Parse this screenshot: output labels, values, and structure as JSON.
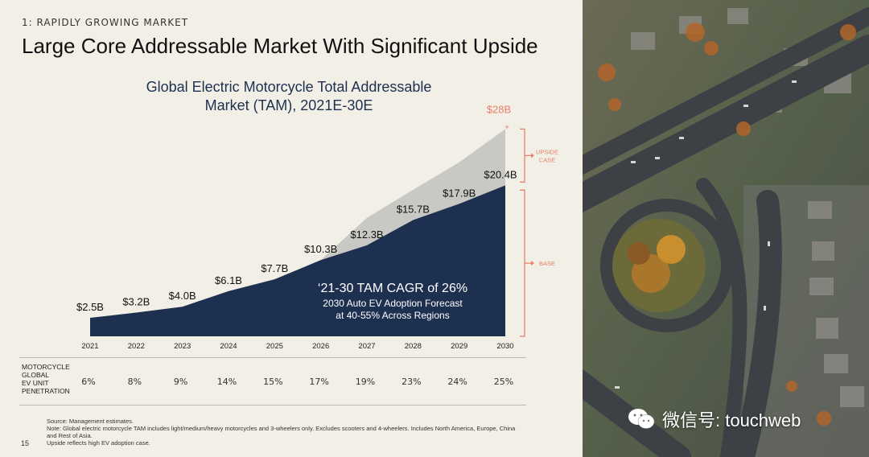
{
  "slide": {
    "section_label": "1: RAPIDLY GROWING MARKET",
    "title": "Large Core Addressable Market With Significant Upside",
    "page_number": "15"
  },
  "chart_data": {
    "type": "area",
    "title": "Global Electric Motorcycle Total Addressable Market (TAM), 2021E-30E",
    "title_lines": [
      "Global Electric Motorcycle Total Addressable",
      "Market (TAM), 2021E-30E"
    ],
    "categories": [
      "2021",
      "2022",
      "2023",
      "2024",
      "2025",
      "2026",
      "2027",
      "2028",
      "2029",
      "2030"
    ],
    "series": [
      {
        "name": "Base",
        "color": "#1e3050",
        "values": [
          2.5,
          3.2,
          4.0,
          6.1,
          7.7,
          10.3,
          12.3,
          15.7,
          17.9,
          20.4
        ],
        "labels": [
          "$2.5B",
          "$3.2B",
          "$4.0B",
          "$6.1B",
          "$7.7B",
          "$10.3B",
          "$12.3B",
          "$15.7B",
          "$17.9B",
          "$20.4B"
        ]
      },
      {
        "name": "Upside",
        "color": "#c8c8c4",
        "values": [
          2.5,
          3.2,
          4.0,
          6.1,
          7.7,
          10.3,
          16.0,
          19.8,
          23.5,
          28.0
        ],
        "top_label": "$28B"
      }
    ],
    "ylim": [
      0,
      30
    ],
    "brackets": [
      {
        "label_lines": [
          "UPSIDE",
          "CASE"
        ],
        "from": 20.4,
        "to": 28.0
      },
      {
        "label_lines": [
          "BASE"
        ],
        "from": 0,
        "to": 20.4
      }
    ],
    "annotation": {
      "headline": "‘21-30 TAM CAGR of 26%",
      "line1": "2030 Auto EV Adoption Forecast",
      "line2": "at 40-55% Across Regions"
    },
    "accent_color": "#e8806a"
  },
  "penetration": {
    "label_lines": [
      "MOTORCYCLE",
      "GLOBAL",
      "EV UNIT",
      "PENETRATION"
    ],
    "values": [
      "6%",
      "8%",
      "9%",
      "14%",
      "15%",
      "17%",
      "19%",
      "23%",
      "24%",
      "25%"
    ]
  },
  "footnotes": [
    "Source: Management estimates.",
    "Note: Global electric motorcycle TAM includes light/medium/heavy motorcycles and 3-wheelers only. Excludes scooters and 4-wheelers. Includes North America, Europe, China",
    "and Rest of Asia.",
    "Upside reflects high EV adoption case."
  ],
  "watermark": {
    "text": "微信号: touchweb",
    "icon": "wechat-icon"
  }
}
